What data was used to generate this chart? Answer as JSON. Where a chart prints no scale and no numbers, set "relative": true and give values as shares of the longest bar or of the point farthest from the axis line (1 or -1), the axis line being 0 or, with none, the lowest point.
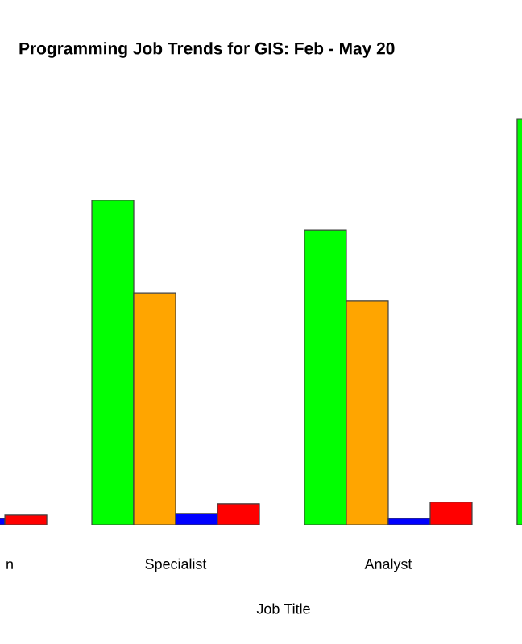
{
  "chart_data": {
    "type": "bar",
    "title": "Programming Job Trends for GIS: Feb - May 20",
    "xlabel": "Job Title",
    "relative": true,
    "categories": [
      "n",
      "Specialist",
      "Analyst",
      null
    ],
    "series": [
      {
        "color": "#00ff00",
        "values": [
          null,
          0.8,
          0.726,
          1
        ]
      },
      {
        "color": "#ffa500",
        "values": [
          null,
          0.571,
          0.552,
          null
        ]
      },
      {
        "color": "#0000ff",
        "values": [
          0.016,
          0.028,
          0.016,
          null
        ]
      },
      {
        "color": "#ff0000",
        "values": [
          0.024,
          0.052,
          0.056,
          null
        ]
      }
    ]
  }
}
